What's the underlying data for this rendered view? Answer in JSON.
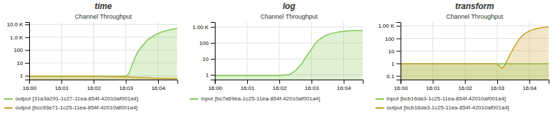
{
  "chart_data": [
    {
      "type": "area",
      "title": "time",
      "subtitle": "Channel Throughput",
      "log": "y",
      "grid": true,
      "legend": "bottom",
      "xlim": [
        0,
        4.6
      ],
      "xticks": [
        {
          "value": 0,
          "label": "16:00"
        },
        {
          "value": 1,
          "label": "16:01"
        },
        {
          "value": 2,
          "label": "16:02"
        },
        {
          "value": 3,
          "label": "16:03"
        },
        {
          "value": 4,
          "label": "16:04"
        }
      ],
      "ylim": [
        0.5,
        15000
      ],
      "yticks": [
        1,
        10,
        100,
        {
          "value": 1000,
          "label": "1.0 K"
        },
        {
          "value": 10000,
          "label": "10.0 K"
        }
      ],
      "series": [
        {
          "name": "output [31a3a291-1c27-11ea-854f-42010af001a4]",
          "color": "#7ec850",
          "x": [
            0,
            0.5,
            1.0,
            1.5,
            2.0,
            2.5,
            2.8,
            3.0,
            3.1,
            3.2,
            3.35,
            3.5,
            3.7,
            3.9,
            4.1,
            4.3,
            4.6
          ],
          "values": [
            0.9,
            0.9,
            0.9,
            0.9,
            0.9,
            0.9,
            0.9,
            0.95,
            1.5,
            8,
            60,
            200,
            700,
            1500,
            2500,
            3500,
            5000
          ]
        },
        {
          "name": "output [bcc93e71-1c25-11ea-854f-42010af001a4]",
          "color": "#c8a020",
          "x": [
            0,
            0.5,
            1.0,
            1.5,
            2.0,
            2.5,
            2.8,
            3.0,
            3.2,
            3.5,
            3.8,
            4.0,
            4.3,
            4.6
          ],
          "values": [
            0.9,
            0.9,
            0.9,
            0.9,
            0.9,
            0.88,
            0.85,
            0.82,
            0.78,
            0.72,
            0.68,
            0.65,
            0.62,
            0.6
          ]
        }
      ]
    },
    {
      "type": "area",
      "title": "log",
      "subtitle": "Channel Throughput",
      "log": "y",
      "grid": true,
      "legend": "bottom",
      "xlim": [
        0,
        4.6
      ],
      "xticks": [
        {
          "value": 0,
          "label": "16:00"
        },
        {
          "value": 1,
          "label": "16:01"
        },
        {
          "value": 2,
          "label": "16:02"
        },
        {
          "value": 3,
          "label": "16:03"
        },
        {
          "value": 4,
          "label": "16:04"
        }
      ],
      "ylim": [
        0.5,
        2000
      ],
      "yticks": [
        1,
        10,
        100,
        {
          "value": 1000,
          "label": "1.00 K"
        }
      ],
      "series": [
        {
          "name": "input [bc7a69ea-1c25-11ea-854f-42010af001a4]",
          "color": "#7ec850",
          "x": [
            0,
            0.5,
            1.0,
            1.5,
            2.0,
            2.3,
            2.5,
            2.7,
            2.85,
            3.0,
            3.1,
            3.2,
            3.35,
            3.5,
            3.7,
            3.9,
            4.1,
            4.3,
            4.6
          ],
          "values": [
            0.9,
            0.9,
            0.9,
            0.9,
            0.9,
            1.0,
            1.8,
            5,
            15,
            40,
            80,
            140,
            230,
            330,
            430,
            510,
            560,
            590,
            610
          ]
        }
      ]
    },
    {
      "type": "area",
      "title": "transform",
      "subtitle": "Channel Throughput",
      "log": "y",
      "grid": true,
      "legend": "bottom",
      "xlim": [
        0,
        4.6
      ],
      "xticks": [
        {
          "value": 0,
          "label": "16:00"
        },
        {
          "value": 1,
          "label": "16:01"
        },
        {
          "value": 2,
          "label": "16:02"
        },
        {
          "value": 3,
          "label": "16:03"
        },
        {
          "value": 4,
          "label": "16:04"
        }
      ],
      "ylim": [
        0.05,
        2000
      ],
      "yticks": [
        0.1,
        1,
        10,
        100,
        {
          "value": 1000,
          "label": "1.00 K"
        }
      ],
      "series": [
        {
          "name": "input [bcb16da3-1c25-11ea-854f-42010af001a4]",
          "color": "#7ec850",
          "x": [
            0,
            0.5,
            1.0,
            1.5,
            2.0,
            2.5,
            3.0,
            3.2,
            3.5,
            3.8,
            4.0,
            4.3,
            4.6
          ],
          "values": [
            0.9,
            0.9,
            0.9,
            0.9,
            0.9,
            0.9,
            0.9,
            0.9,
            0.9,
            0.9,
            0.9,
            0.9,
            0.9
          ]
        },
        {
          "name": "output [bcb16da3-1c25-11ea-854f-42010af001a4]",
          "color": "#c8a020",
          "x": [
            0,
            0.5,
            1.0,
            1.5,
            2.0,
            2.5,
            3.0,
            3.05,
            3.1,
            3.15,
            3.2,
            3.3,
            3.4,
            3.5,
            3.6,
            3.7,
            3.85,
            4.0,
            4.2,
            4.4,
            4.6
          ],
          "values": [
            0.9,
            0.9,
            0.9,
            0.9,
            0.9,
            0.9,
            0.9,
            0.7,
            0.5,
            0.4,
            0.5,
            1.5,
            5,
            15,
            40,
            100,
            230,
            400,
            600,
            750,
            850
          ]
        }
      ]
    }
  ]
}
